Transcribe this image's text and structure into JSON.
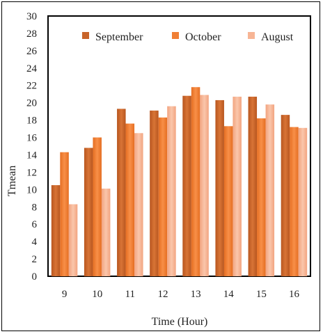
{
  "chart_data": {
    "type": "bar",
    "title": "",
    "xlabel": "Time (Hour)",
    "ylabel": "Tmean",
    "categories": [
      "9",
      "10",
      "11",
      "12",
      "13",
      "14",
      "15",
      "16"
    ],
    "series": [
      {
        "name": "September",
        "color": "#c8642a",
        "values": [
          10.5,
          14.8,
          19.3,
          19.1,
          20.8,
          20.3,
          20.7,
          18.6
        ]
      },
      {
        "name": "October",
        "color": "#f07f35",
        "values": [
          14.3,
          16.0,
          17.6,
          18.3,
          21.8,
          17.3,
          18.2,
          17.2
        ]
      },
      {
        "name": "August",
        "color": "#f7b595",
        "values": [
          8.3,
          10.1,
          16.5,
          19.6,
          20.9,
          20.7,
          19.8,
          17.1
        ]
      }
    ],
    "ylim": [
      0,
      30
    ],
    "yticks": [
      0,
      2,
      4,
      6,
      8,
      10,
      12,
      14,
      16,
      18,
      20,
      22,
      24,
      26,
      28,
      30
    ],
    "legend_position": "top",
    "grid": false
  }
}
